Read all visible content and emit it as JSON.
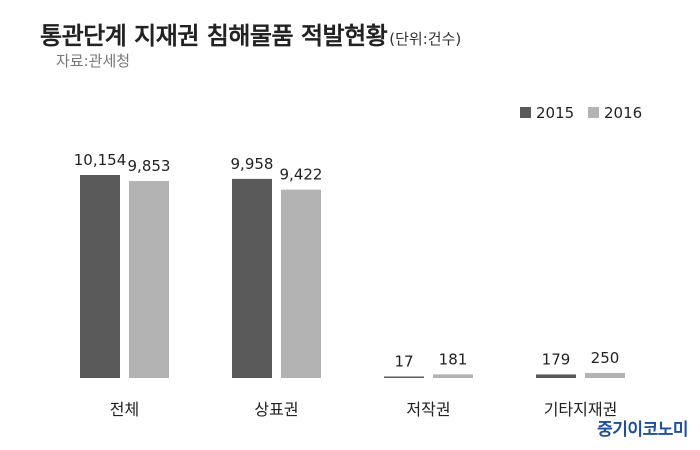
{
  "header": {
    "title": "통관단계 지재권 침해물품 적발현황",
    "unit": "(단위:건수)",
    "source": "자료:관세청"
  },
  "brand": {
    "name": "중기이코노미"
  },
  "colors": {
    "series_2015": "#5a5a5a",
    "series_2016": "#b3b3b3",
    "brand": "#1f4f9a"
  },
  "chart_data": {
    "type": "bar",
    "title": "통관단계 지재권 침해물품 적발현황",
    "unit": "(단위:건수)",
    "categories": [
      "전체",
      "상표권",
      "저작권",
      "기타지재권"
    ],
    "series": [
      {
        "name": "2015",
        "values": [
          10154,
          9958,
          17,
          179
        ],
        "labels": [
          "10,154",
          "9,958",
          "17",
          "179"
        ]
      },
      {
        "name": "2016",
        "values": [
          9853,
          9422,
          181,
          250
        ],
        "labels": [
          "9,853",
          "9,422",
          "181",
          "250"
        ]
      }
    ],
    "xlabel": "",
    "ylabel": "",
    "grid": false,
    "legend": "top-right"
  }
}
